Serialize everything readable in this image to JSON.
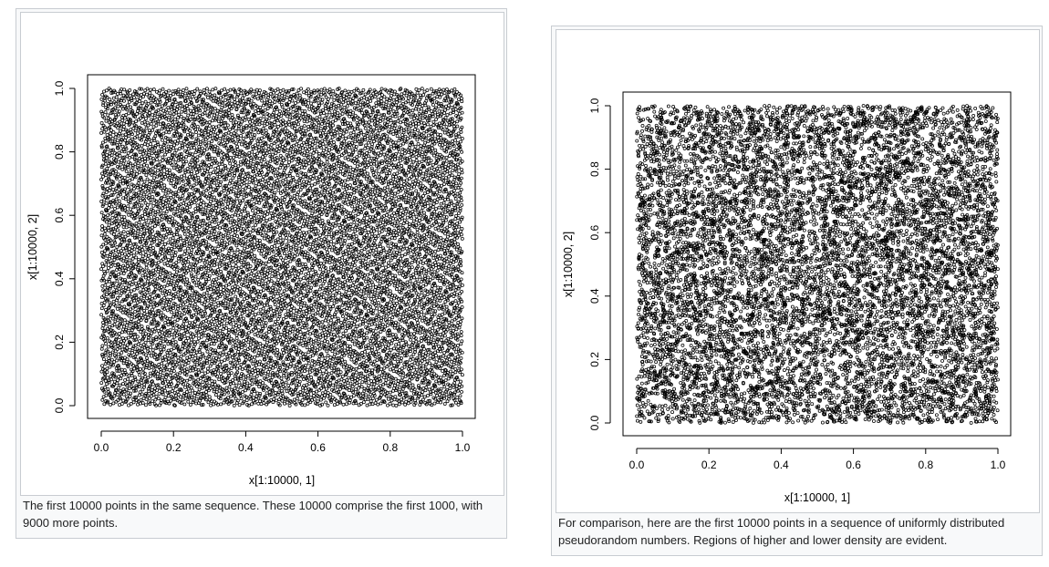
{
  "figures": [
    {
      "caption": "The first 10000 points in the same sequence. These 10000 comprise the first 1000, with 9000 more points."
    },
    {
      "caption": "For comparison, here are the first 10000 points in a sequence of uniformly distributed pseudorandom numbers. Regions of higher and lower density are evident."
    }
  ],
  "chart_data": [
    {
      "type": "scatter",
      "title": "",
      "xlabel": "x[1:10000, 1]",
      "ylabel": "x[1:10000, 2]",
      "xlim": [
        0,
        1
      ],
      "ylim": [
        0,
        1
      ],
      "x_ticks": [
        "0.0",
        "0.2",
        "0.4",
        "0.6",
        "0.8",
        "1.0"
      ],
      "y_ticks": [
        "0.0",
        "0.2",
        "0.4",
        "0.6",
        "0.8",
        "1.0"
      ],
      "n_points": 10000,
      "distribution": "low-discrepancy (quasi-random) sequence, evenly covering the unit square",
      "marker": "open-circle",
      "color": "#000000",
      "grid": false,
      "legend": "none"
    },
    {
      "type": "scatter",
      "title": "",
      "xlabel": "x[1:10000, 1]",
      "ylabel": "x[1:10000, 2]",
      "xlim": [
        0,
        1
      ],
      "ylim": [
        0,
        1
      ],
      "x_ticks": [
        "0.0",
        "0.2",
        "0.4",
        "0.6",
        "0.8",
        "1.0"
      ],
      "y_ticks": [
        "0.0",
        "0.2",
        "0.4",
        "0.6",
        "0.8",
        "1.0"
      ],
      "n_points": 10000,
      "distribution": "uniform pseudorandom, with visible clumps and gaps",
      "marker": "open-circle",
      "color": "#000000",
      "grid": false,
      "legend": "none"
    }
  ]
}
